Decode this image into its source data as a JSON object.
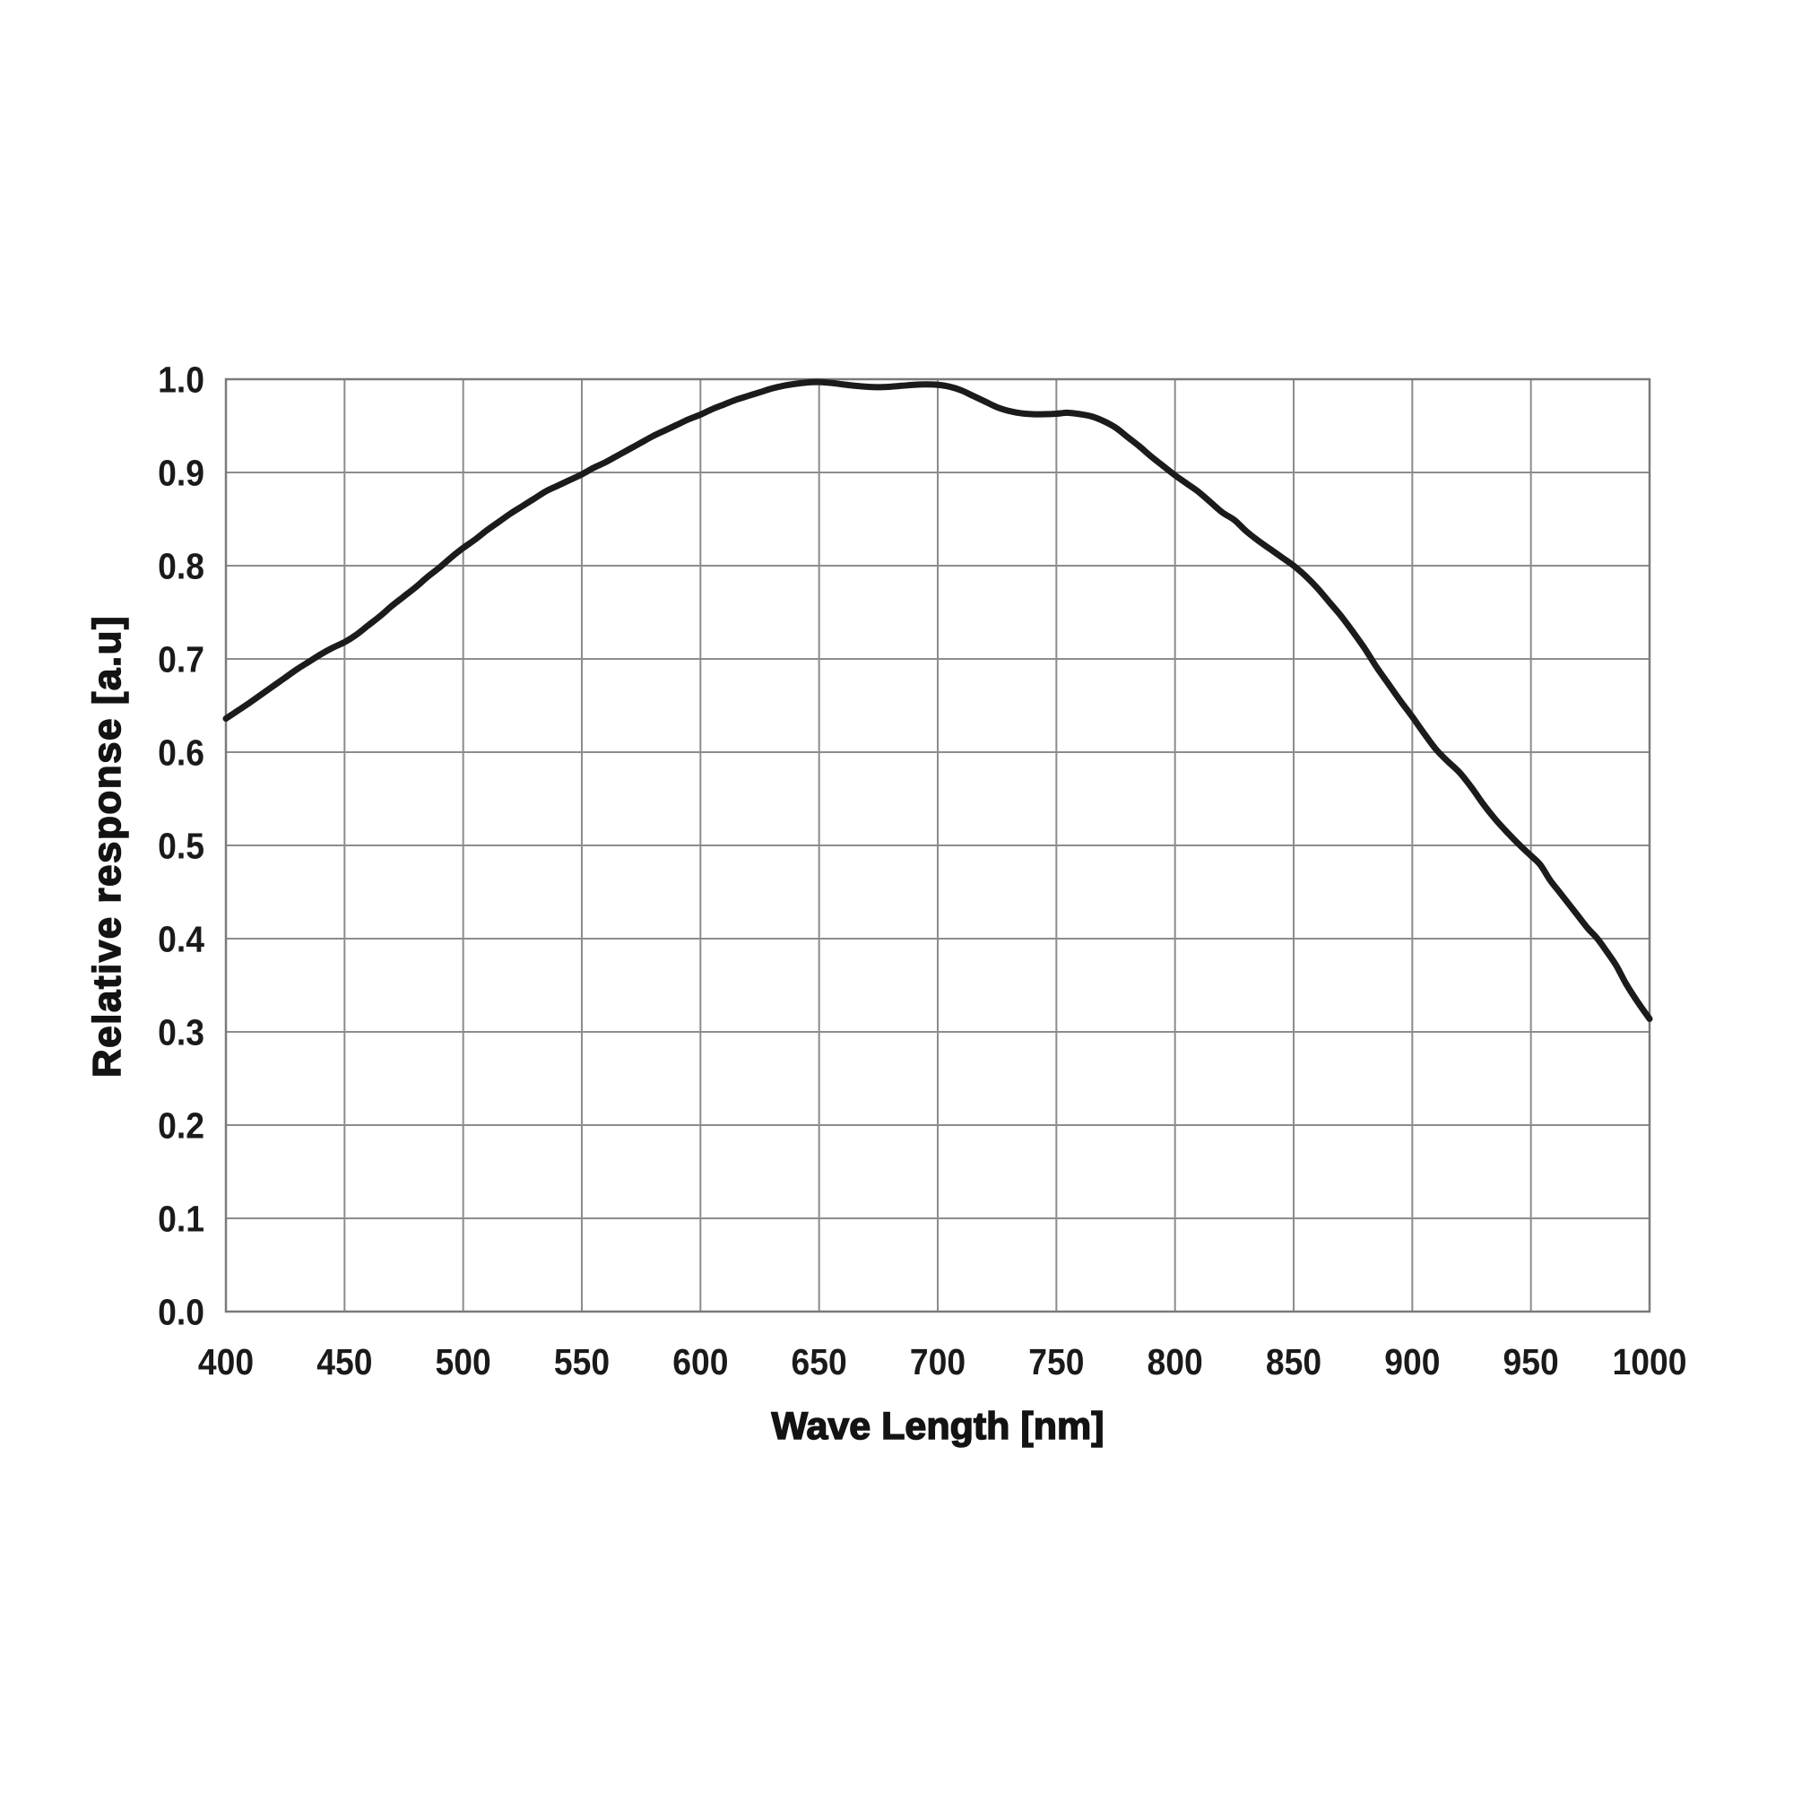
{
  "chart_data": {
    "type": "line",
    "title": "",
    "xlabel": "Wave Length [nm]",
    "ylabel": "Relative response [a.u]",
    "xlim": [
      400,
      1000
    ],
    "ylim": [
      0.0,
      1.0
    ],
    "x_ticks": [
      400,
      450,
      500,
      550,
      600,
      650,
      700,
      750,
      800,
      850,
      900,
      950,
      1000
    ],
    "y_ticks": [
      0.0,
      0.1,
      0.2,
      0.3,
      0.4,
      0.5,
      0.6,
      0.7,
      0.8,
      0.9,
      1.0
    ],
    "grid": true,
    "legend": "none",
    "colors": {
      "line": "#1b1b1b",
      "grid": "#8c8c8c",
      "axis_border": "#7a7a7a",
      "text": "#1a1a1a",
      "background": "#ffffff"
    },
    "series": [
      {
        "name": "relative-response",
        "points": [
          [
            400,
            0.636
          ],
          [
            405,
            0.6445
          ],
          [
            410,
            0.653
          ],
          [
            415,
            0.662
          ],
          [
            420,
            0.671
          ],
          [
            425,
            0.68
          ],
          [
            430,
            0.689
          ],
          [
            435,
            0.697
          ],
          [
            440,
            0.705
          ],
          [
            445,
            0.712
          ],
          [
            450,
            0.718
          ],
          [
            455,
            0.726
          ],
          [
            460,
            0.736
          ],
          [
            465,
            0.746
          ],
          [
            470,
            0.757
          ],
          [
            475,
            0.767
          ],
          [
            480,
            0.777
          ],
          [
            485,
            0.788
          ],
          [
            490,
            0.798
          ],
          [
            495,
            0.809
          ],
          [
            500,
            0.819
          ],
          [
            505,
            0.828
          ],
          [
            510,
            0.838
          ],
          [
            515,
            0.847
          ],
          [
            520,
            0.856
          ],
          [
            525,
            0.864
          ],
          [
            530,
            0.872
          ],
          [
            535,
            0.88
          ],
          [
            540,
            0.886
          ],
          [
            545,
            0.892
          ],
          [
            550,
            0.898
          ],
          [
            555,
            0.905
          ],
          [
            560,
            0.911
          ],
          [
            565,
            0.918
          ],
          [
            570,
            0.925
          ],
          [
            575,
            0.932
          ],
          [
            580,
            0.939
          ],
          [
            585,
            0.945
          ],
          [
            590,
            0.951
          ],
          [
            595,
            0.957
          ],
          [
            600,
            0.962
          ],
          [
            605,
            0.968
          ],
          [
            610,
            0.973
          ],
          [
            615,
            0.978
          ],
          [
            620,
            0.982
          ],
          [
            625,
            0.986
          ],
          [
            630,
            0.99
          ],
          [
            635,
            0.993
          ],
          [
            640,
            0.995
          ],
          [
            645,
            0.9965
          ],
          [
            650,
            0.997
          ],
          [
            655,
            0.996
          ],
          [
            660,
            0.9945
          ],
          [
            665,
            0.993
          ],
          [
            670,
            0.992
          ],
          [
            675,
            0.9915
          ],
          [
            680,
            0.992
          ],
          [
            685,
            0.993
          ],
          [
            690,
            0.994
          ],
          [
            695,
            0.9945
          ],
          [
            700,
            0.994
          ],
          [
            705,
            0.992
          ],
          [
            710,
            0.988
          ],
          [
            715,
            0.982
          ],
          [
            720,
            0.976
          ],
          [
            725,
            0.97
          ],
          [
            730,
            0.966
          ],
          [
            735,
            0.9635
          ],
          [
            740,
            0.9625
          ],
          [
            745,
            0.9625
          ],
          [
            750,
            0.963
          ],
          [
            755,
            0.964
          ],
          [
            760,
            0.9625
          ],
          [
            765,
            0.96
          ],
          [
            770,
            0.955
          ],
          [
            775,
            0.948
          ],
          [
            780,
            0.938
          ],
          [
            785,
            0.928
          ],
          [
            790,
            0.917
          ],
          [
            795,
            0.907
          ],
          [
            800,
            0.897
          ],
          [
            805,
            0.888
          ],
          [
            810,
            0.879
          ],
          [
            815,
            0.868
          ],
          [
            820,
            0.857
          ],
          [
            825,
            0.849
          ],
          [
            830,
            0.837
          ],
          [
            835,
            0.827
          ],
          [
            840,
            0.818
          ],
          [
            845,
            0.809
          ],
          [
            850,
            0.8
          ],
          [
            855,
            0.789
          ],
          [
            860,
            0.776
          ],
          [
            865,
            0.761
          ],
          [
            870,
            0.746
          ],
          [
            875,
            0.729
          ],
          [
            880,
            0.711
          ],
          [
            885,
            0.691
          ],
          [
            890,
            0.673
          ],
          [
            895,
            0.655
          ],
          [
            900,
            0.638
          ],
          [
            905,
            0.62
          ],
          [
            910,
            0.603
          ],
          [
            915,
            0.59
          ],
          [
            920,
            0.578
          ],
          [
            925,
            0.562
          ],
          [
            930,
            0.544
          ],
          [
            935,
            0.528
          ],
          [
            940,
            0.514
          ],
          [
            945,
            0.501
          ],
          [
            950,
            0.489
          ],
          [
            954,
            0.479
          ],
          [
            958,
            0.463
          ],
          [
            962,
            0.45
          ],
          [
            966,
            0.437
          ],
          [
            970,
            0.424
          ],
          [
            974,
            0.411
          ],
          [
            978,
            0.4
          ],
          [
            982,
            0.386
          ],
          [
            986,
            0.371
          ],
          [
            990,
            0.352
          ],
          [
            995,
            0.332
          ],
          [
            1000,
            0.314
          ]
        ]
      }
    ]
  }
}
